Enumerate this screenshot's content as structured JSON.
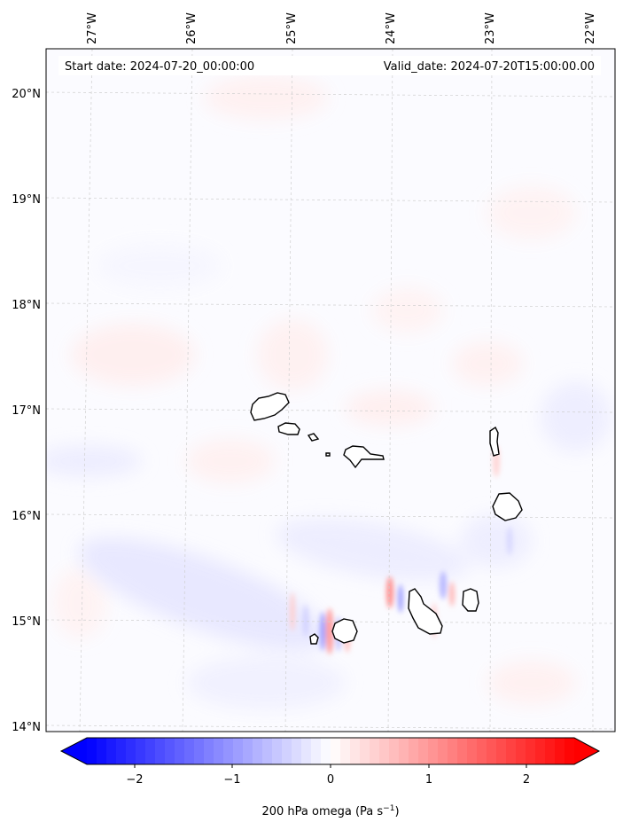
{
  "header": {
    "start_date": "Start date: 2024-07-20_00:00:00",
    "valid_date": "Valid_date: 2024-07-20T15:00:00.00"
  },
  "map": {
    "lon_ticks": [
      "27°W",
      "26°W",
      "25°W",
      "24°W",
      "23°W",
      "22°W"
    ],
    "lat_ticks": [
      "20°N",
      "19°N",
      "18°N",
      "17°N",
      "16°N",
      "15°N",
      "14°N"
    ],
    "gridlines": true
  },
  "colorbar": {
    "ticks": [
      "−2",
      "−1",
      "0",
      "1",
      "2"
    ],
    "title_prefix": "200 hPa omega (Pa s",
    "title_exp": "−1",
    "title_suffix": ")",
    "colormap": "bwr",
    "range": [
      -2.5,
      2.5
    ],
    "colors": {
      "low": "#0000ff",
      "mid": "#ffffff",
      "high": "#ff0000"
    }
  }
}
